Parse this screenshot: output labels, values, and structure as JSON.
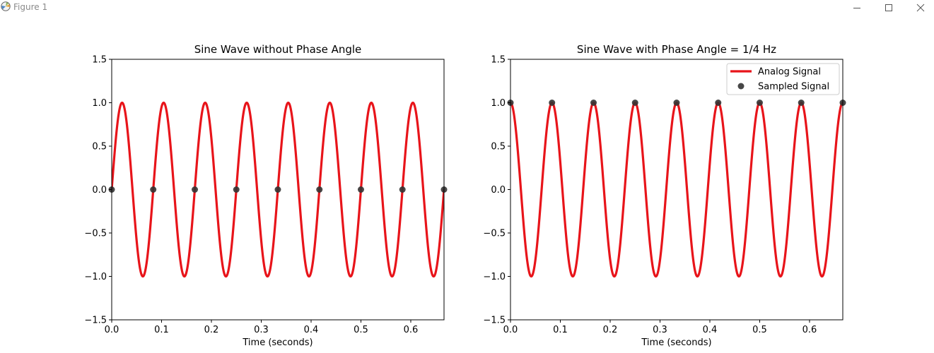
{
  "window": {
    "title": "Figure 1",
    "icons": {
      "app": "matplotlib-logo-icon",
      "minimize": "minimize-icon",
      "maximize": "maximize-icon",
      "close": "close-icon"
    }
  },
  "colors": {
    "analog": "#e8141a",
    "sampled": "#333333"
  },
  "chart_data": [
    {
      "type": "line",
      "title": "Sine Wave without Phase Angle",
      "xlabel": "Time (seconds)",
      "ylabel": "",
      "xlim": [
        0,
        0.6667
      ],
      "ylim": [
        -1.5,
        1.5
      ],
      "xticks": [
        0.0,
        0.1,
        0.2,
        0.3,
        0.4,
        0.5,
        0.6
      ],
      "xtick_labels": [
        "0.0",
        "0.1",
        "0.2",
        "0.3",
        "0.4",
        "0.5",
        "0.6"
      ],
      "yticks": [
        -1.5,
        -1.0,
        -0.5,
        0.0,
        0.5,
        1.0,
        1.5
      ],
      "ytick_labels": [
        "−1.5",
        "−1.0",
        "−0.5",
        "0.0",
        "0.5",
        "1.0",
        "1.5"
      ],
      "grid": false,
      "series": [
        {
          "kind": "line",
          "function": "sin",
          "frequency_hz": 12,
          "phase_cycles": 0,
          "x_range": [
            0,
            0.6667
          ]
        },
        {
          "kind": "scatter",
          "x": [
            0.0,
            0.0833,
            0.1667,
            0.25,
            0.3333,
            0.4167,
            0.5,
            0.5833,
            0.6667
          ],
          "y": [
            0.0,
            0.0,
            0.0,
            0.0,
            0.0,
            0.0,
            0.0,
            0.0,
            0.0
          ]
        }
      ]
    },
    {
      "type": "line",
      "title": "Sine Wave with Phase Angle = 1/4 Hz",
      "xlabel": "Time (seconds)",
      "ylabel": "",
      "xlim": [
        0,
        0.6667
      ],
      "ylim": [
        -1.5,
        1.5
      ],
      "xticks": [
        0.0,
        0.1,
        0.2,
        0.3,
        0.4,
        0.5,
        0.6
      ],
      "xtick_labels": [
        "0.0",
        "0.1",
        "0.2",
        "0.3",
        "0.4",
        "0.5",
        "0.6"
      ],
      "yticks": [
        -1.5,
        -1.0,
        -0.5,
        0.0,
        0.5,
        1.0,
        1.5
      ],
      "ytick_labels": [
        "−1.5",
        "−1.0",
        "−0.5",
        "0.0",
        "0.5",
        "1.0",
        "1.5"
      ],
      "grid": false,
      "legend": {
        "position": "upper-right",
        "entries": [
          {
            "label": "Analog Signal",
            "marker": "line"
          },
          {
            "label": "Sampled Signal",
            "marker": "dot"
          }
        ]
      },
      "series": [
        {
          "kind": "line",
          "name": "Analog Signal",
          "function": "sin",
          "frequency_hz": 12,
          "phase_cycles": 0.25,
          "x_range": [
            0,
            0.6667
          ]
        },
        {
          "kind": "scatter",
          "name": "Sampled Signal",
          "x": [
            0.0,
            0.0833,
            0.1667,
            0.25,
            0.3333,
            0.4167,
            0.5,
            0.5833,
            0.6667
          ],
          "y": [
            1.0,
            1.0,
            1.0,
            1.0,
            1.0,
            1.0,
            1.0,
            1.0,
            1.0
          ]
        }
      ]
    }
  ]
}
